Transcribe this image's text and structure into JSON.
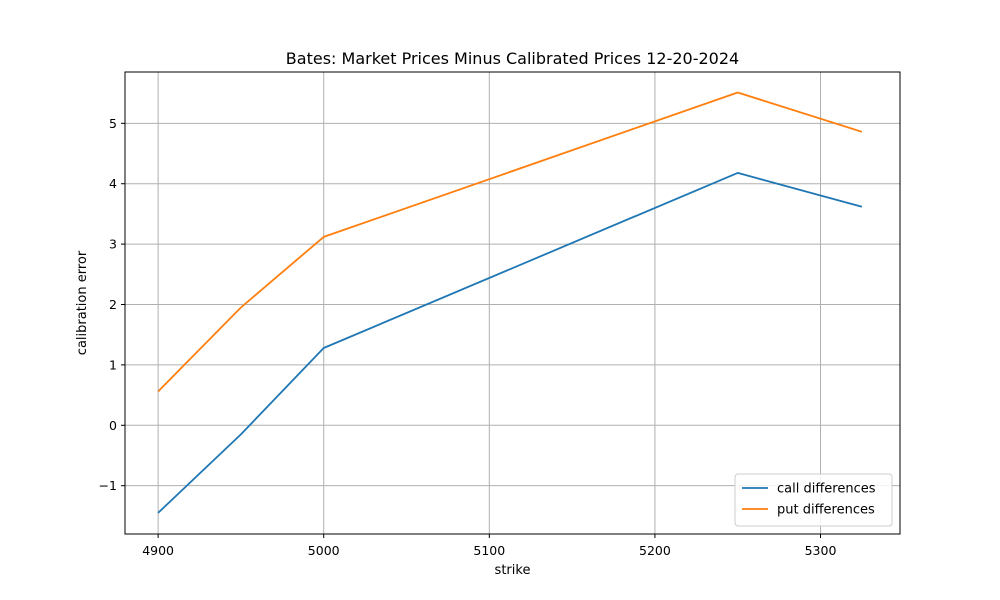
{
  "chart_data": {
    "type": "line",
    "title": "Bates: Market Prices Minus Calibrated Prices 12-20-2024",
    "xlabel": "strike",
    "ylabel": "calibration error",
    "xlim": [
      4880,
      5348
    ],
    "ylim": [
      -1.8,
      5.85
    ],
    "xticks": [
      4900,
      5000,
      5100,
      5200,
      5300
    ],
    "yticks": [
      -1,
      0,
      1,
      2,
      3,
      4,
      5
    ],
    "grid": true,
    "legend_position": "lower-right",
    "series": [
      {
        "name": "call differences",
        "color": "#1f77b4",
        "x": [
          4900,
          4950,
          5000,
          5250,
          5325
        ],
        "y": [
          -1.45,
          -0.15,
          1.28,
          4.18,
          3.62
        ]
      },
      {
        "name": "put differences",
        "color": "#ff7f0e",
        "x": [
          4900,
          4950,
          5000,
          5250,
          5325
        ],
        "y": [
          0.56,
          1.95,
          3.12,
          5.51,
          4.86
        ]
      }
    ]
  }
}
